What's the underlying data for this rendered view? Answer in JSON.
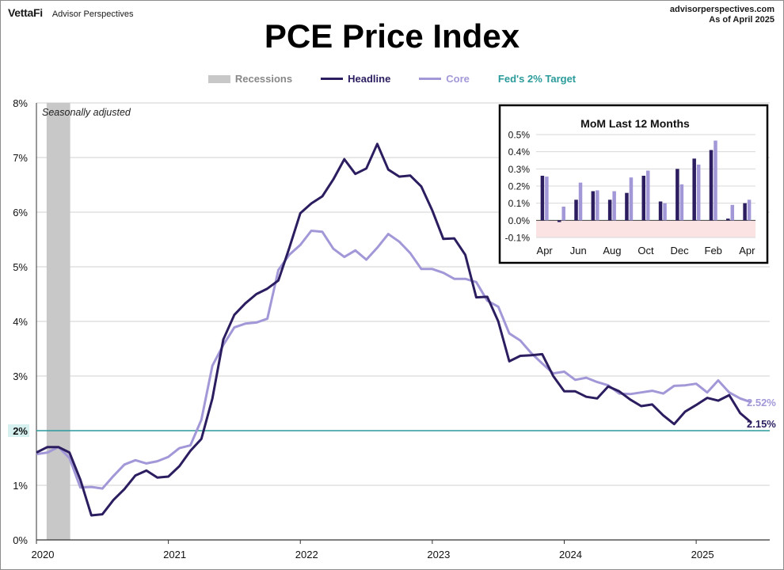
{
  "brand": {
    "logo": "VettaFi",
    "name": "Advisor Perspectives"
  },
  "source": {
    "site": "advisorperspectives.com",
    "as_of": "As of April 2025"
  },
  "colors": {
    "headline": "#2b1d5f",
    "core": "#a298d8",
    "target": "#2a9a9a",
    "recession": "#c8c8c8",
    "negative_zone": "#fbe3e3"
  },
  "legend": [
    {
      "label": "Recessions",
      "kind": "box",
      "color": "#c8c8c8",
      "text_color": "#888888"
    },
    {
      "label": "Headline",
      "kind": "line",
      "color": "#2b1d5f",
      "text_color": "#2b1d5f"
    },
    {
      "label": "Core",
      "kind": "line",
      "color": "#a298d8",
      "text_color": "#a298d8"
    },
    {
      "label": "Fed's 2% Target",
      "kind": "none",
      "color": "#2a9a9a",
      "text_color": "#2a9a9a"
    }
  ],
  "chart_data": [
    {
      "type": "line",
      "title": "PCE Price Index",
      "annotation": "Seasonally adjusted",
      "xlabel": "",
      "ylabel": "",
      "x_start": "2020-01",
      "x_end": "2025-04",
      "x_ticks": [
        "2020",
        "2021",
        "2022",
        "2023",
        "2024",
        "2025"
      ],
      "y_ticks": [
        "0%",
        "1%",
        "2%",
        "3%",
        "4%",
        "5%",
        "6%",
        "7%",
        "8%"
      ],
      "ylim": [
        0,
        8
      ],
      "grid": true,
      "legend_position": "top",
      "target": {
        "value": 2.0,
        "label": "2%"
      },
      "recession": {
        "start": "2020-02",
        "end": "2020-04"
      },
      "series": [
        {
          "name": "Headline",
          "end_label": "2.15%",
          "values": [
            1.6,
            1.7,
            1.7,
            1.6,
            1.1,
            0.45,
            0.47,
            0.73,
            0.93,
            1.18,
            1.27,
            1.14,
            1.16,
            1.35,
            1.63,
            1.85,
            2.59,
            3.67,
            4.12,
            4.33,
            4.5,
            4.6,
            4.75,
            5.35,
            5.98,
            6.16,
            6.29,
            6.6,
            6.97,
            6.7,
            6.8,
            7.25,
            6.78,
            6.65,
            6.67,
            6.47,
            6.03,
            5.51,
            5.52,
            5.22,
            4.44,
            4.45,
            4.0,
            3.27,
            3.37,
            3.38,
            3.4,
            3.0,
            2.72,
            2.72,
            2.62,
            2.59,
            2.81,
            2.72,
            2.57,
            2.45,
            2.48,
            2.28,
            2.12,
            2.35,
            2.47,
            2.6,
            2.55,
            2.65,
            2.32,
            2.15
          ]
        },
        {
          "name": "Core",
          "end_label": "2.52%",
          "values": [
            1.57,
            1.6,
            1.7,
            1.5,
            0.96,
            0.97,
            0.94,
            1.17,
            1.38,
            1.46,
            1.4,
            1.44,
            1.52,
            1.68,
            1.73,
            2.2,
            3.19,
            3.57,
            3.89,
            3.96,
            3.98,
            4.05,
            4.94,
            5.22,
            5.4,
            5.66,
            5.64,
            5.33,
            5.18,
            5.3,
            5.13,
            5.35,
            5.6,
            5.46,
            5.25,
            4.96,
            4.96,
            4.89,
            4.78,
            4.78,
            4.72,
            4.38,
            4.27,
            3.78,
            3.65,
            3.42,
            3.23,
            3.05,
            3.08,
            2.93,
            2.97,
            2.89,
            2.83,
            2.68,
            2.67,
            2.7,
            2.73,
            2.68,
            2.82,
            2.83,
            2.86,
            2.7,
            2.92,
            2.7,
            2.59,
            2.52
          ]
        }
      ]
    },
    {
      "type": "bar",
      "title": "MoM Last 12 Months",
      "xlabel": "",
      "ylabel": "",
      "categories": [
        "Apr",
        "May",
        "Jun",
        "Jul",
        "Aug",
        "Sep",
        "Oct",
        "Nov",
        "Dec",
        "Jan",
        "Feb",
        "Mar",
        "Apr"
      ],
      "tick_labels": [
        "Apr",
        "Jun",
        "Aug",
        "Oct",
        "Dec",
        "Feb",
        "Apr"
      ],
      "y_ticks": [
        "-0.1%",
        "0.0%",
        "0.1%",
        "0.2%",
        "0.3%",
        "0.4%",
        "0.5%"
      ],
      "ylim": [
        -0.1,
        0.5
      ],
      "grid": true,
      "series": [
        {
          "name": "Headline",
          "values": [
            0.26,
            -0.01,
            0.12,
            0.17,
            0.12,
            0.16,
            0.26,
            0.11,
            0.3,
            0.36,
            0.41,
            0.01,
            0.1
          ]
        },
        {
          "name": "Core",
          "values": [
            0.255,
            0.08,
            0.22,
            0.175,
            0.17,
            0.25,
            0.29,
            0.1,
            0.21,
            0.325,
            0.465,
            0.09,
            0.12
          ]
        }
      ]
    }
  ]
}
